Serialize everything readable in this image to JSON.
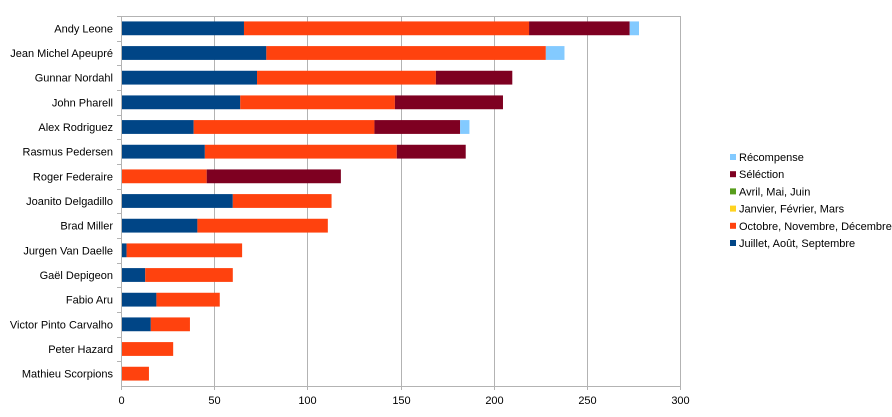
{
  "chart_data": {
    "type": "bar",
    "orientation": "horizontal",
    "stacked": true,
    "categories": [
      "Andy Leone",
      "Jean Michel Apeupré",
      "Gunnar Nordahl",
      "John Pharell",
      "Alex Rodriguez",
      "Rasmus Pedersen",
      "Roger Federaire",
      "Joanito Delgadillo",
      "Brad Miller",
      "Jurgen Van Daelle",
      "Gaël Depigeon",
      "Fabio Aru",
      "Victor Pinto Carvalho",
      "Peter Hazard",
      "Mathieu Scorpions"
    ],
    "series": [
      {
        "name": "Juillet, Août, Septembre",
        "color": "#004586",
        "values": [
          66,
          78,
          73,
          64,
          39,
          45,
          0,
          60,
          41,
          3,
          13,
          19,
          16,
          0,
          0
        ]
      },
      {
        "name": "Octobre, Novembre, Décembre",
        "color": "#ff420e",
        "values": [
          153,
          150,
          96,
          83,
          97,
          103,
          46,
          53,
          70,
          62,
          47,
          34,
          21,
          28,
          15
        ]
      },
      {
        "name": "Janvier, Février, Mars",
        "color": "#ffd320",
        "values": [
          0,
          0,
          0,
          0,
          0,
          0,
          0,
          0,
          0,
          0,
          0,
          0,
          0,
          0,
          0
        ]
      },
      {
        "name": "Avril, Mai, Juin",
        "color": "#579d1c",
        "values": [
          0,
          0,
          0,
          0,
          0,
          0,
          0,
          0,
          0,
          0,
          0,
          0,
          0,
          0,
          0
        ]
      },
      {
        "name": "Séléction",
        "color": "#7e0021",
        "values": [
          54,
          0,
          41,
          58,
          46,
          37,
          72,
          0,
          0,
          0,
          0,
          0,
          0,
          0,
          0
        ]
      },
      {
        "name": "Récompense",
        "color": "#83caff",
        "values": [
          5,
          10,
          0,
          0,
          5,
          0,
          0,
          0,
          0,
          0,
          0,
          0,
          0,
          0,
          0
        ]
      }
    ],
    "xlim": [
      0,
      300
    ],
    "xticks": [
      0,
      50,
      100,
      150,
      200,
      250,
      300
    ],
    "grid": true,
    "legend_position": "right"
  }
}
